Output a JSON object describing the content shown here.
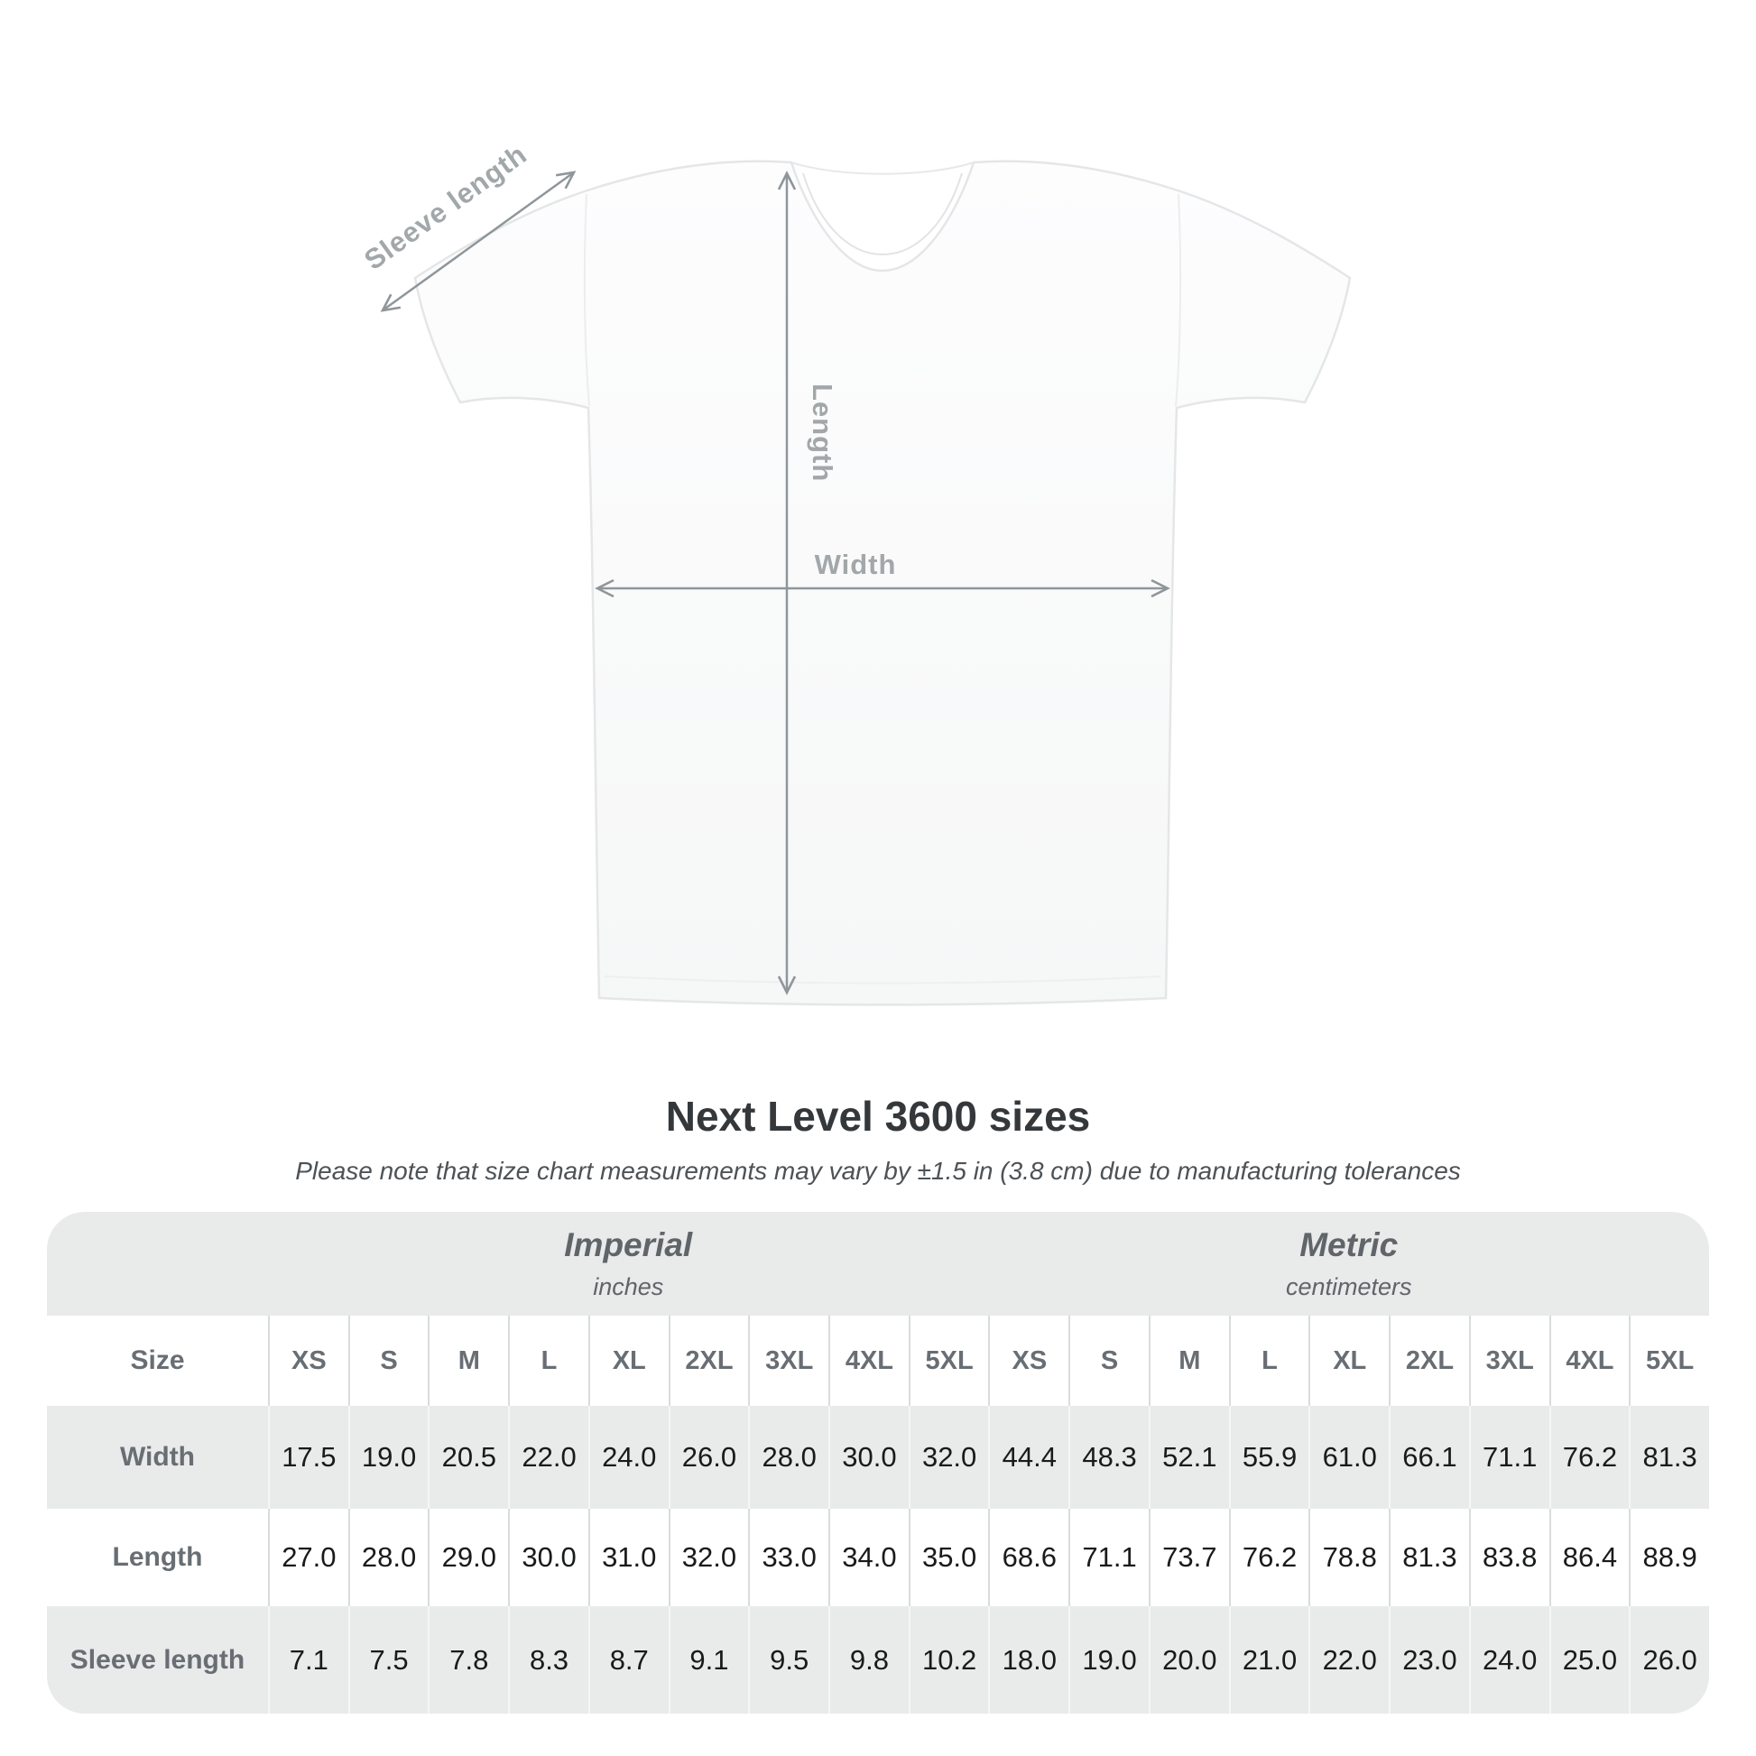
{
  "title": "Next Level 3600 sizes",
  "subtitle": "Please note that size chart measurements may vary by ±1.5 in (3.8 cm) due to manufacturing tolerances",
  "diagram": {
    "labels": {
      "sleeve_length": "Sleeve length",
      "length": "Length",
      "width": "Width"
    },
    "arrow_color": "#8f969a",
    "label_color": "#a2a7aa"
  },
  "table": {
    "background": "#e9eaea",
    "unit_groups": [
      {
        "name": "Imperial",
        "unit": "inches"
      },
      {
        "name": "Metric",
        "unit": "centimeters"
      }
    ],
    "size_header": "Size",
    "sizes": [
      "XS",
      "S",
      "M",
      "L",
      "XL",
      "2XL",
      "3XL",
      "4XL",
      "5XL"
    ],
    "rows": [
      {
        "label": "Width",
        "imperial": [
          "17.5",
          "19.0",
          "20.5",
          "22.0",
          "24.0",
          "26.0",
          "28.0",
          "30.0",
          "32.0"
        ],
        "metric": [
          "44.4",
          "48.3",
          "52.1",
          "55.9",
          "61.0",
          "66.1",
          "71.1",
          "76.2",
          "81.3"
        ]
      },
      {
        "label": "Length",
        "imperial": [
          "27.0",
          "28.0",
          "29.0",
          "30.0",
          "31.0",
          "32.0",
          "33.0",
          "34.0",
          "35.0"
        ],
        "metric": [
          "68.6",
          "71.1",
          "73.7",
          "76.2",
          "78.8",
          "81.3",
          "83.8",
          "86.4",
          "88.9"
        ]
      },
      {
        "label": "Sleeve length",
        "imperial": [
          "7.1",
          "7.5",
          "7.8",
          "8.3",
          "8.7",
          "9.1",
          "9.5",
          "9.8",
          "10.2"
        ],
        "metric": [
          "18.0",
          "19.0",
          "20.0",
          "21.0",
          "22.0",
          "23.0",
          "24.0",
          "25.0",
          "26.0"
        ]
      }
    ]
  }
}
